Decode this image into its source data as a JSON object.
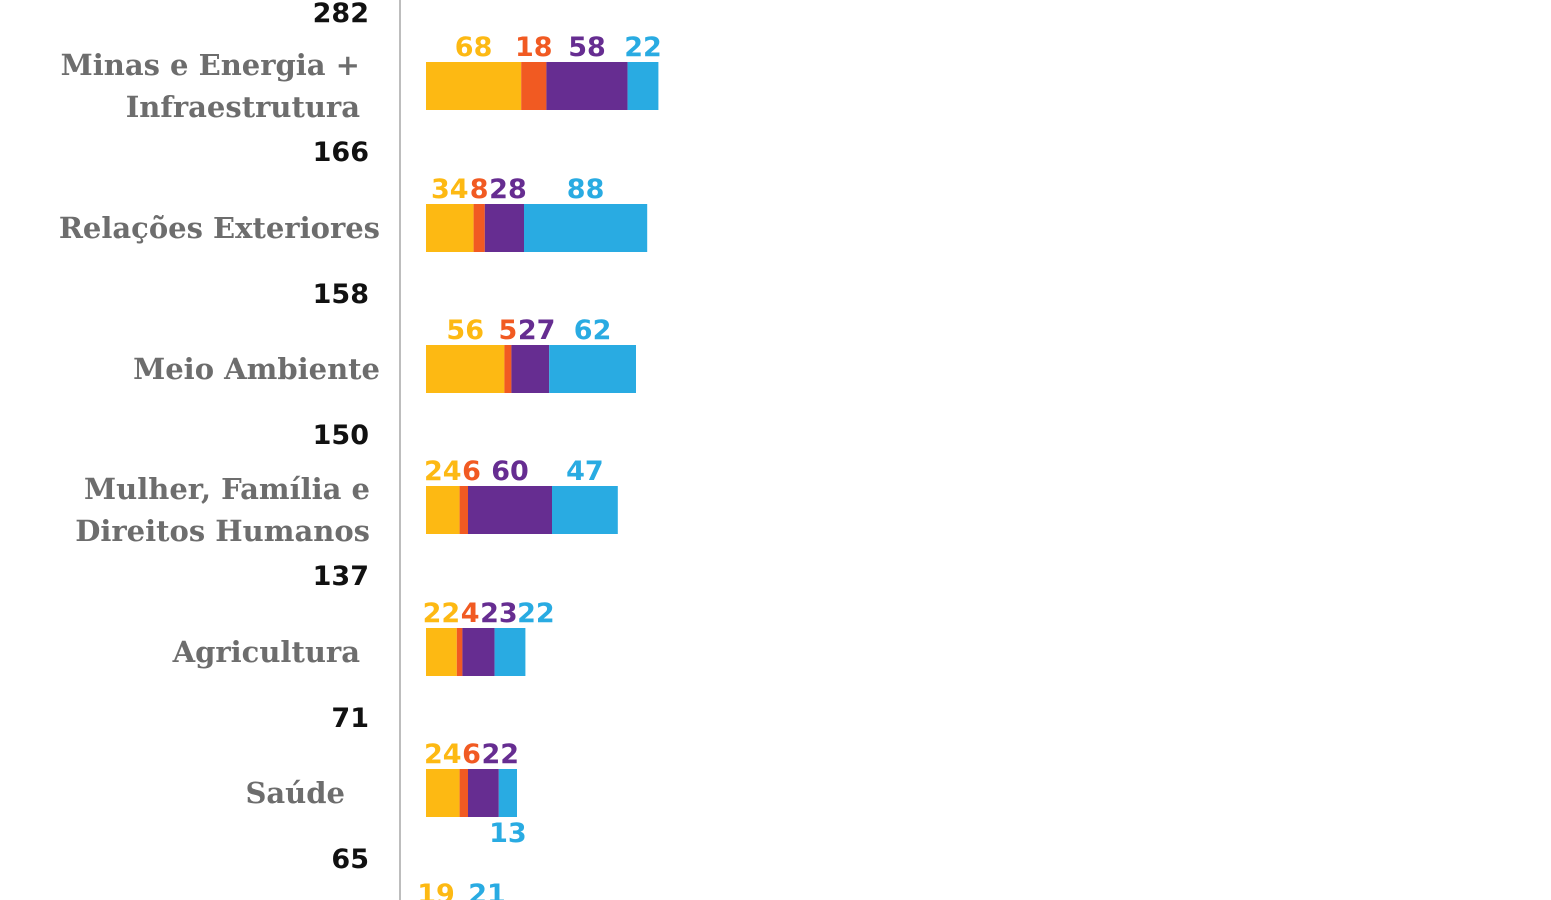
{
  "chart_data": {
    "type": "bar",
    "orientation": "horizontal",
    "stacked": true,
    "colors": [
      "#fdb913",
      "#f15a22",
      "#662d91",
      "#29abe2"
    ],
    "categories": [
      {
        "label_lines": [
          "Minas e Energia +",
          "Infraestrutura"
        ],
        "total": "166"
      },
      {
        "label_lines": [
          "Relações Exteriores"
        ],
        "total": "158"
      },
      {
        "label_lines": [
          "Meio Ambiente"
        ],
        "total": "150"
      },
      {
        "label_lines": [
          "Mulher, Família e",
          "Direitos Humanos"
        ],
        "total": "137"
      },
      {
        "label_lines": [
          "Agricultura"
        ],
        "total": "71"
      },
      {
        "label_lines": [
          "Saúde"
        ],
        "total": "65"
      }
    ],
    "segments": [
      [
        68,
        18,
        58,
        22
      ],
      [
        34,
        8,
        28,
        88
      ],
      [
        56,
        5,
        27,
        62
      ],
      [
        24,
        6,
        60,
        47
      ],
      [
        22,
        4,
        23,
        22
      ],
      [
        24,
        6,
        22,
        13
      ]
    ],
    "partial_top": {
      "total": "282"
    },
    "partial_bottom": {
      "values": [
        19,
        21
      ]
    }
  }
}
